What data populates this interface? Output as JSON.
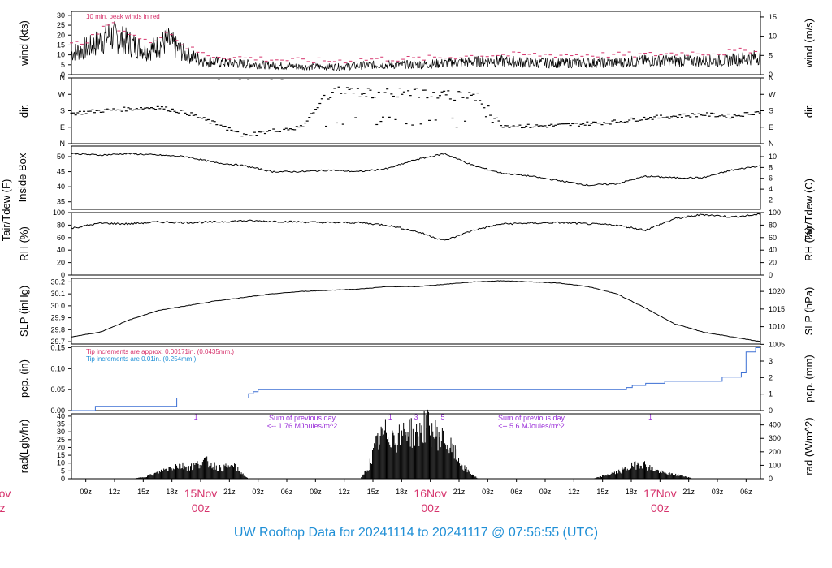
{
  "title": "UW Rooftop Data for 20241114  to  20241117 @ 07:56:55  (UTC)",
  "x_axis": {
    "hour_ticks": [
      "09z",
      "12z",
      "15z",
      "18z",
      "21z",
      "03z",
      "06z",
      "09z",
      "12z",
      "15z",
      "18z",
      "21z",
      "03z",
      "06z",
      "09z",
      "12z",
      "15z",
      "18z",
      "21z",
      "03z",
      "06z"
    ],
    "day_labels": [
      {
        "date": "15Nov",
        "time": "00z"
      },
      {
        "date": "16Nov",
        "time": "00z"
      },
      {
        "date": "17Nov",
        "time": "00z"
      }
    ],
    "cut_left": {
      "date": "ov",
      "time": "z"
    }
  },
  "chart_data": [
    {
      "type": "line",
      "panel": "wind",
      "ylabel_left": "wind (kts)",
      "ylabel_right": "wind (m/s)",
      "yticks_left": [
        0,
        5,
        10,
        15,
        20,
        25,
        30
      ],
      "yticks_right": [
        0,
        5,
        10,
        15
      ],
      "ylim": [
        0,
        32
      ],
      "note": "10 min. peak winds in red",
      "series": [
        {
          "name": "wind",
          "x": [
            0,
            2,
            4,
            6,
            8,
            10,
            12,
            14,
            16,
            20,
            24,
            28,
            32,
            36,
            40,
            44,
            48,
            52,
            56,
            60,
            64,
            68,
            72
          ],
          "values": [
            11,
            14,
            20,
            16,
            12,
            17,
            10,
            7,
            6,
            5,
            4,
            4,
            5,
            5,
            6,
            7,
            6,
            6,
            6,
            7,
            7,
            7,
            9
          ]
        },
        {
          "name": "10 min. peak winds",
          "x": [
            0,
            2,
            4,
            6,
            8,
            10,
            12,
            14,
            16,
            20,
            24,
            28,
            32,
            36,
            40,
            44,
            48,
            52,
            56,
            60,
            64,
            68,
            72
          ],
          "values": [
            15,
            18,
            26,
            21,
            16,
            22,
            14,
            10,
            9,
            8,
            7,
            7,
            8,
            8,
            9,
            10,
            10,
            10,
            10,
            10,
            11,
            11,
            13
          ]
        }
      ]
    },
    {
      "type": "scatter",
      "panel": "dir",
      "ylabel_left": "dir.",
      "ylabel_right": "dir.",
      "yticks": [
        "N",
        "E",
        "S",
        "W",
        "N"
      ],
      "ylim": [
        0,
        360
      ],
      "series": [
        {
          "x": [
            0,
            3,
            6,
            9,
            12,
            15,
            18,
            21,
            24,
            27,
            30,
            33,
            36,
            39,
            42,
            45,
            48,
            51,
            54,
            57,
            60,
            63,
            66,
            69,
            72
          ],
          "values": [
            165,
            180,
            190,
            200,
            170,
            110,
            45,
            70,
            90,
            280,
            280,
            270,
            280,
            260,
            275,
            100,
            95,
            100,
            110,
            120,
            140,
            150,
            160,
            150,
            175
          ]
        }
      ]
    },
    {
      "type": "line",
      "panel": "temp",
      "ylabel_left": "Tair/Tdew (F)",
      "ylabel_left2": "Inside Box",
      "ylabel_right": "Tair/Tdew (C)",
      "yticks_left": [
        35,
        40,
        45,
        50
      ],
      "yticks_right": [
        2,
        4,
        6,
        8,
        10
      ],
      "ylim": [
        32.5,
        53.5
      ],
      "series": [
        {
          "x": [
            0,
            3,
            6,
            9,
            12,
            15,
            18,
            21,
            24,
            27,
            30,
            33,
            36,
            39,
            42,
            45,
            48,
            51,
            54,
            57,
            60,
            63,
            66,
            69,
            72
          ],
          "values": [
            51,
            50.5,
            51,
            50.5,
            50,
            48,
            47,
            45,
            45,
            45.5,
            45,
            46,
            49,
            51,
            47,
            44.5,
            43.5,
            42,
            40.5,
            41,
            43.5,
            43,
            43,
            45.5,
            47
          ]
        }
      ]
    },
    {
      "type": "line",
      "panel": "rh",
      "ylabel_left": "RH (%)",
      "ylabel_right": "RH (%)",
      "yticks": [
        0,
        20,
        40,
        60,
        80,
        100
      ],
      "ylim": [
        0,
        100
      ],
      "series": [
        {
          "x": [
            0,
            3,
            6,
            9,
            12,
            15,
            18,
            21,
            24,
            27,
            30,
            33,
            36,
            39,
            42,
            45,
            48,
            51,
            54,
            57,
            60,
            63,
            66,
            69,
            72
          ],
          "values": [
            75,
            83,
            82,
            85,
            84,
            85,
            87,
            86,
            85,
            84,
            84,
            80,
            70,
            55,
            72,
            82,
            83,
            84,
            82,
            80,
            72,
            90,
            97,
            93,
            97
          ]
        }
      ]
    },
    {
      "type": "line",
      "panel": "slp",
      "ylabel_left": "SLP (inHg)",
      "ylabel_right": "SLP (hPa)",
      "yticks_left": [
        "29.7",
        "29.8",
        "29.9",
        "30.0",
        "30.1",
        "30.2"
      ],
      "yticks_right": [
        1005,
        1010,
        1015,
        1020
      ],
      "ylim": [
        29.68,
        30.23
      ],
      "series": [
        {
          "x": [
            0,
            3,
            6,
            9,
            12,
            15,
            18,
            21,
            24,
            27,
            30,
            33,
            36,
            39,
            42,
            45,
            48,
            51,
            54,
            57,
            60,
            63,
            66,
            69,
            72
          ],
          "values": [
            29.74,
            29.78,
            29.88,
            29.96,
            30.0,
            30.04,
            30.07,
            30.1,
            30.12,
            30.13,
            30.14,
            30.16,
            30.16,
            30.18,
            30.2,
            30.21,
            30.2,
            30.19,
            30.16,
            30.1,
            29.98,
            29.85,
            29.78,
            29.74,
            29.7
          ]
        }
      ]
    },
    {
      "type": "line",
      "panel": "pcp",
      "ylabel_left": "pcp. (in)",
      "ylabel_right": "pcp. (mm)",
      "yticks_left": [
        "0.00",
        "0.05",
        "0.10",
        "0.15"
      ],
      "yticks_right": [
        0,
        1,
        2,
        3
      ],
      "ylim": [
        0,
        0.153
      ],
      "note_red": "Tip increments are approx. 0.00171in. (0.0435mm.)",
      "note_blue": "Tip increments are 0.01in. (0.254mm.)",
      "series": [
        {
          "x": [
            0,
            2.5,
            2.5,
            11,
            11,
            18.5,
            18.5,
            19,
            19,
            19.5,
            19.5,
            58,
            58,
            58.6,
            58.6,
            60,
            60,
            62,
            62,
            68,
            68,
            70,
            70,
            70.5,
            70.5,
            71.5,
            71.5,
            72
          ],
          "values": [
            0,
            0,
            0.01,
            0.01,
            0.03,
            0.03,
            0.04,
            0.04,
            0.045,
            0.045,
            0.05,
            0.05,
            0.055,
            0.055,
            0.06,
            0.06,
            0.065,
            0.065,
            0.07,
            0.07,
            0.08,
            0.08,
            0.09,
            0.09,
            0.14,
            0.14,
            0.15,
            0.15
          ]
        }
      ]
    },
    {
      "type": "area",
      "panel": "rad",
      "ylabel_left": "rad(Lgly/hr)",
      "ylabel_right": "rad (W/m^2)",
      "yticks_left": [
        0,
        5,
        10,
        15,
        20,
        25,
        30,
        35,
        40
      ],
      "yticks_right": [
        0,
        100,
        200,
        300,
        400
      ],
      "ylim": [
        0,
        41.5
      ],
      "annotations": [
        {
          "text": "Sum of previous day",
          "text2": "<-- 1.76 MJoules/m^2"
        },
        {
          "text": "Sum of previous day",
          "text2": "<-- 5.6 MJoules/m^2"
        }
      ],
      "markers": [
        "1",
        "1",
        "3",
        "5",
        "1"
      ],
      "series": [
        {
          "x": [
            6.5,
            8,
            9.5,
            11,
            12.5,
            14,
            15.5,
            17,
            18.5,
            30.2,
            31,
            32,
            33,
            34,
            35,
            36,
            37,
            38,
            39,
            40,
            41,
            42.5,
            54.5,
            56,
            57.5,
            58.5,
            59.5,
            60.5,
            62,
            63,
            64,
            65
          ],
          "values": [
            0,
            2,
            6,
            10,
            9,
            13,
            8,
            9,
            0,
            0,
            8,
            28,
            35,
            30,
            38,
            32,
            40,
            34,
            28,
            20,
            8,
            0,
            0,
            3,
            6,
            9,
            12,
            8,
            4,
            3,
            2,
            0
          ]
        }
      ]
    }
  ]
}
